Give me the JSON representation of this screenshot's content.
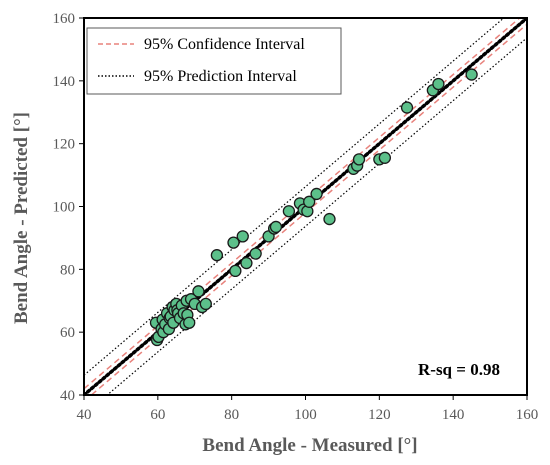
{
  "chart_data": {
    "type": "scatter",
    "xlabel": "Bend Angle - Measured [°]",
    "ylabel": "Bend Angle - Predicted [°]",
    "xlim": [
      40,
      160
    ],
    "ylim": [
      40,
      160
    ],
    "x_ticks": [
      "40",
      "60",
      "80",
      "100",
      "120",
      "140",
      "160"
    ],
    "y_ticks": [
      "40",
      "60",
      "80",
      "100",
      "120",
      "140",
      "160"
    ],
    "grid": false,
    "legend_placement": "top-left",
    "legend": [
      {
        "label": "95% Confidence Interval",
        "style": "dashed",
        "color": "#e8827c"
      },
      {
        "label": "95% Prediction Interval",
        "style": "dotted",
        "color": "#000000"
      }
    ],
    "annotation": "R-sq = 0.98",
    "marker_color": "#5cc08a",
    "fit_line": {
      "slope": 1.0,
      "intercept": 0.0,
      "style": "dotted-bold",
      "color": "#000000"
    },
    "confidence_band": {
      "half_width": 2.0
    },
    "prediction_band": {
      "half_width": 6.3
    },
    "points": [
      [
        59.5,
        63
      ],
      [
        59.8,
        57.5
      ],
      [
        60.2,
        58.5
      ],
      [
        61,
        61
      ],
      [
        61.3,
        64
      ],
      [
        61.5,
        60
      ],
      [
        62,
        62.5
      ],
      [
        62.5,
        66
      ],
      [
        63,
        61
      ],
      [
        63.2,
        64.5
      ],
      [
        63.5,
        65
      ],
      [
        64,
        68
      ],
      [
        64.2,
        63
      ],
      [
        64.5,
        67
      ],
      [
        65,
        69
      ],
      [
        65.3,
        67
      ],
      [
        65.5,
        66
      ],
      [
        66,
        64.5
      ],
      [
        66.5,
        68.5
      ],
      [
        67,
        66
      ],
      [
        67.5,
        62.5
      ],
      [
        67.8,
        70
      ],
      [
        68,
        65.5
      ],
      [
        68.5,
        63
      ],
      [
        69,
        70.5
      ],
      [
        70,
        69
      ],
      [
        71,
        73
      ],
      [
        72,
        68
      ],
      [
        73,
        69
      ],
      [
        76,
        84.5
      ],
      [
        80.5,
        88.5
      ],
      [
        81,
        79.5
      ],
      [
        83,
        90.5
      ],
      [
        84,
        82
      ],
      [
        86.5,
        85
      ],
      [
        90,
        90.5
      ],
      [
        91.5,
        93
      ],
      [
        92,
        93.5
      ],
      [
        95.5,
        98.5
      ],
      [
        98.5,
        101
      ],
      [
        99.5,
        99
      ],
      [
        100.5,
        98.5
      ],
      [
        101,
        101.5
      ],
      [
        103,
        104
      ],
      [
        106.5,
        96
      ],
      [
        113,
        112
      ],
      [
        114,
        113
      ],
      [
        114.5,
        115
      ],
      [
        120,
        115
      ],
      [
        121.5,
        115.5
      ],
      [
        127.5,
        131.5
      ],
      [
        134.5,
        137
      ],
      [
        136,
        139
      ],
      [
        145,
        142
      ]
    ]
  }
}
